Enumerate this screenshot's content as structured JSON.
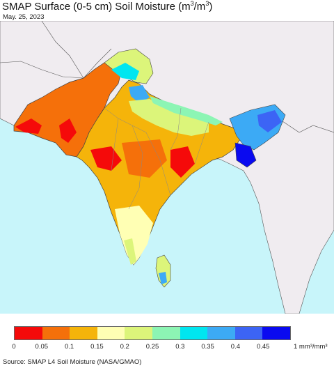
{
  "title_prefix": "SMAP Surface (0-5 cm) Soil Moisture (m",
  "title_sup1": "3",
  "title_mid": "/m",
  "title_sup2": "3",
  "title_suffix": ")",
  "date": "May. 25, 2023",
  "legend": {
    "colors": [
      "#f50a0a",
      "#f5700a",
      "#f5b40a",
      "#ffffb4",
      "#dcf57a",
      "#8cf5b4",
      "#00e6f0",
      "#3caaf5",
      "#3c64f5",
      "#0a0af0"
    ],
    "ticks": [
      "0",
      "0.05",
      "0.1",
      "0.15",
      "0.2",
      "0.25",
      "0.3",
      "0.35",
      "0.4",
      "0.45"
    ],
    "unit_label": "1 mm³/mm³"
  },
  "source": "Source: SMAP L4 Soil Moisture (NASA/GMAO)",
  "map_colors": {
    "ocean": "#c8f5fa",
    "outside_land": "#f0ecf0",
    "border": "#333333"
  }
}
